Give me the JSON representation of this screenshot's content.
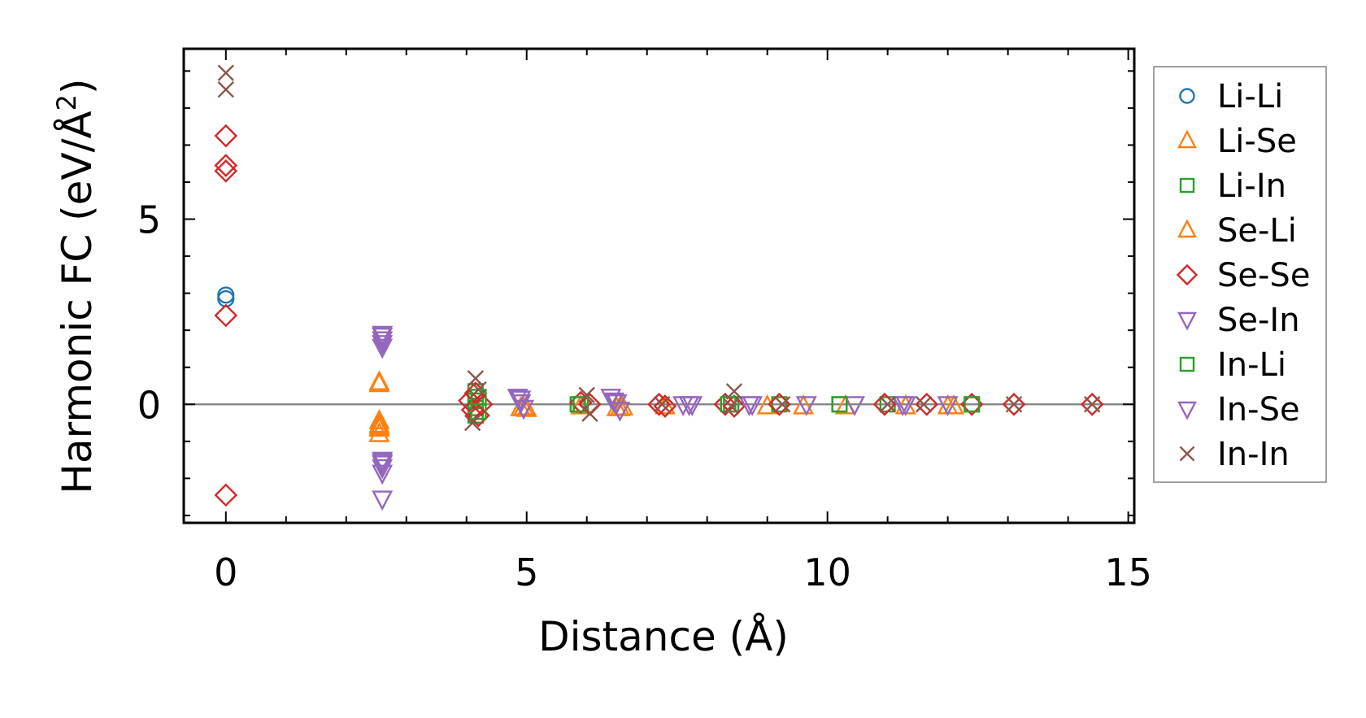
{
  "chart_data": {
    "type": "scatter",
    "xlabel": "Distance (Å)",
    "ylabel_main": "Harmonic FC (eV/Å",
    "ylabel_sup": "2",
    "ylabel_close": ")",
    "xlim": [
      -0.7,
      15.1
    ],
    "ylim": [
      -3.2,
      9.6
    ],
    "xticks": [
      0,
      5,
      10,
      15
    ],
    "xtick_labels": [
      "0",
      "5",
      "10",
      "15"
    ],
    "yticks": [
      0,
      5
    ],
    "ytick_labels": [
      "0",
      "5"
    ],
    "zero_line": true,
    "legend_position": "right",
    "series": [
      {
        "name": "Li-Li",
        "marker": "circle",
        "color": "#1f77b4",
        "points": [
          [
            0,
            2.95
          ],
          [
            0,
            2.85
          ]
        ]
      },
      {
        "name": "Li-Se",
        "marker": "triangle-up",
        "color": "#ff7f0e",
        "points": [
          [
            2.55,
            0.6
          ],
          [
            2.55,
            -0.45
          ],
          [
            2.55,
            -0.55
          ],
          [
            2.55,
            -0.65
          ],
          [
            2.55,
            -0.8
          ],
          [
            4.9,
            -0.1
          ],
          [
            5.0,
            -0.12
          ],
          [
            5.9,
            -0.05
          ],
          [
            6.5,
            -0.1
          ],
          [
            6.6,
            -0.08
          ],
          [
            7.3,
            -0.05
          ],
          [
            9.0,
            -0.05
          ],
          [
            10.3,
            -0.05
          ],
          [
            11.3,
            -0.05
          ],
          [
            12.0,
            -0.05
          ]
        ]
      },
      {
        "name": "Li-In",
        "marker": "square",
        "color": "#2ca02c",
        "points": [
          [
            4.15,
            0.35
          ],
          [
            4.15,
            0.1
          ],
          [
            4.15,
            -0.1
          ],
          [
            4.15,
            -0.3
          ],
          [
            5.85,
            0.0
          ],
          [
            8.4,
            0.0
          ],
          [
            9.2,
            0.0
          ],
          [
            10.2,
            0.0
          ],
          [
            11.0,
            0.0
          ],
          [
            12.4,
            0.0
          ]
        ]
      },
      {
        "name": "Se-Li",
        "marker": "triangle-up",
        "color": "#ff7f0e",
        "points": [
          [
            2.55,
            0.55
          ],
          [
            2.55,
            -0.6
          ],
          [
            4.95,
            -0.08
          ],
          [
            6.55,
            -0.1
          ],
          [
            9.6,
            -0.05
          ],
          [
            12.1,
            -0.05
          ]
        ]
      },
      {
        "name": "Se-Se",
        "marker": "diamond",
        "color": "#d62728",
        "points": [
          [
            0,
            7.25
          ],
          [
            0,
            6.45
          ],
          [
            0,
            6.3
          ],
          [
            0,
            2.4
          ],
          [
            0,
            -2.45
          ],
          [
            4.05,
            0.1
          ],
          [
            4.1,
            -0.15
          ],
          [
            4.15,
            0.3
          ],
          [
            4.2,
            -0.3
          ],
          [
            4.25,
            0.0
          ],
          [
            5.9,
            0.05
          ],
          [
            6.05,
            0.0
          ],
          [
            7.2,
            0.0
          ],
          [
            7.3,
            -0.05
          ],
          [
            8.3,
            0.0
          ],
          [
            8.45,
            -0.05
          ],
          [
            9.2,
            0.0
          ],
          [
            10.95,
            0.0
          ],
          [
            11.65,
            0.0
          ],
          [
            12.4,
            0.0
          ],
          [
            13.1,
            0.0
          ],
          [
            14.4,
            0.0
          ]
        ]
      },
      {
        "name": "Se-In",
        "marker": "triangle-down",
        "color": "#9467bd",
        "points": [
          [
            2.6,
            1.9
          ],
          [
            2.6,
            1.75
          ],
          [
            2.6,
            1.65
          ],
          [
            2.6,
            1.55
          ],
          [
            2.6,
            -1.5
          ],
          [
            2.6,
            -1.6
          ],
          [
            2.6,
            -1.7
          ],
          [
            2.6,
            -1.85
          ],
          [
            2.6,
            -2.55
          ],
          [
            4.85,
            0.2
          ],
          [
            4.9,
            0.05
          ],
          [
            4.95,
            -0.1
          ],
          [
            6.4,
            0.2
          ],
          [
            6.5,
            0.05
          ],
          [
            6.55,
            -0.15
          ],
          [
            7.6,
            0.0
          ],
          [
            7.75,
            0.0
          ],
          [
            8.7,
            0.0
          ],
          [
            9.65,
            0.0
          ],
          [
            10.45,
            0.0
          ],
          [
            11.25,
            0.0
          ],
          [
            12.0,
            0.0
          ]
        ]
      },
      {
        "name": "In-Li",
        "marker": "square",
        "color": "#2ca02c",
        "points": [
          [
            4.2,
            0.2
          ],
          [
            4.2,
            -0.2
          ],
          [
            5.9,
            0.0
          ],
          [
            8.35,
            0.0
          ],
          [
            10.2,
            0.0
          ],
          [
            12.4,
            0.0
          ]
        ]
      },
      {
        "name": "In-Se",
        "marker": "triangle-down",
        "color": "#9467bd",
        "points": [
          [
            2.6,
            1.85
          ],
          [
            2.6,
            -1.55
          ],
          [
            4.9,
            0.15
          ],
          [
            6.45,
            0.1
          ],
          [
            7.7,
            0.0
          ],
          [
            8.75,
            0.0
          ],
          [
            11.3,
            0.0
          ]
        ]
      },
      {
        "name": "In-In",
        "marker": "x",
        "color": "#8c564b",
        "points": [
          [
            0,
            8.95
          ],
          [
            0,
            8.5
          ],
          [
            4.15,
            0.7
          ],
          [
            4.1,
            -0.5
          ],
          [
            4.2,
            0.4
          ],
          [
            6.0,
            0.25
          ],
          [
            6.05,
            -0.25
          ],
          [
            7.25,
            0.0
          ],
          [
            8.45,
            0.35
          ],
          [
            8.4,
            -0.05
          ],
          [
            9.25,
            0.0
          ],
          [
            11.0,
            0.0
          ],
          [
            11.6,
            0.0
          ],
          [
            13.1,
            0.0
          ],
          [
            14.4,
            0.0
          ]
        ]
      }
    ]
  }
}
